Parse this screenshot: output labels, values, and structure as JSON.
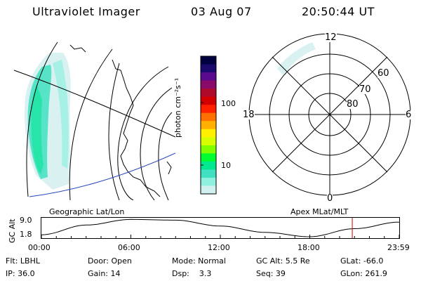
{
  "header": {
    "instrument": "Ultraviolet Imager",
    "date": "03 Aug 07",
    "time": "20:50:44 UT"
  },
  "colorbar": {
    "label": "photon cm⁻²s⁻¹",
    "ticks": [
      "100",
      "10"
    ],
    "scale": "log",
    "colors": [
      "#000040",
      "#1a0a6e",
      "#5a0a8e",
      "#8a0a6a",
      "#b00a2a",
      "#d40000",
      "#ff2000",
      "#ff7000",
      "#ffb000",
      "#fff000",
      "#d8ff00",
      "#80ff00",
      "#00ff30",
      "#00e890",
      "#40e0c0",
      "#90f0e0",
      "#d0f0f0"
    ]
  },
  "left_panel": {
    "label": "Geographic Lat/Lon"
  },
  "right_panel": {
    "label": "Apex MLat/MLT",
    "mlt_labels": {
      "top": "12",
      "bottom": "0",
      "left": "18",
      "right": "6"
    },
    "lat_labels": [
      "60",
      "70",
      "80"
    ]
  },
  "altitude_chart": {
    "ylabel": "GC Alt",
    "yticks": [
      "9.0",
      "1.8"
    ],
    "xticks": [
      "00:00",
      "06:00",
      "12:00",
      "18:00",
      "23:59"
    ]
  },
  "chart_data": {
    "type": "line",
    "xlabel": "",
    "ylabel": "GC Alt",
    "x_hours": [
      0,
      3,
      6,
      9,
      12,
      15,
      18,
      21,
      24
    ],
    "values": [
      2.6,
      6.6,
      8.9,
      8.6,
      6.2,
      3.6,
      1.8,
      5.1,
      7.8
    ],
    "ylim": [
      1.8,
      9.0
    ],
    "xlim": [
      0,
      24
    ],
    "marker_hour": 20.85,
    "marker_color": "#cc0000",
    "line_color": "#000000"
  },
  "footer": {
    "flt": "Flt: LBHL",
    "ip": "IP: 36.0",
    "door": "Door: Open",
    "gain": "Gain: 14",
    "mode": "Mode: Normal",
    "dsp": "Dsp:    3.3",
    "gc_alt": "GC Alt: 5.5 Re",
    "seq": "Seq: 39",
    "glat": "GLat: -66.0",
    "glon": "GLon: 261.9"
  }
}
